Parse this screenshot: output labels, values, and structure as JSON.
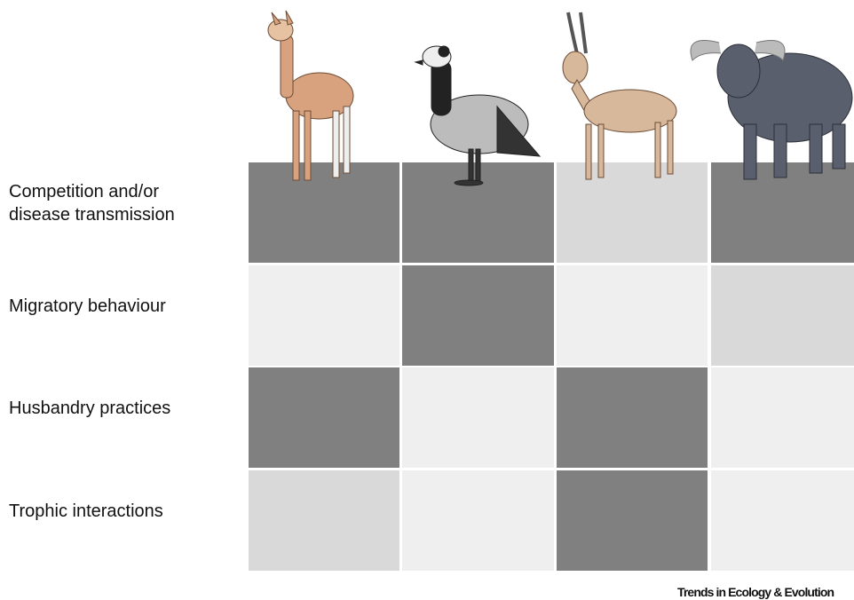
{
  "rows": [
    {
      "label": [
        "Competition and/or",
        "disease transmission"
      ],
      "cells": [
        "#808080",
        "#808080",
        "#d9d9d9",
        "#808080"
      ]
    },
    {
      "label": [
        "Migratory behaviour"
      ],
      "cells": [
        "#efefef",
        "#808080",
        "#efefef",
        "#d9d9d9"
      ]
    },
    {
      "label": [
        "Husbandry practices"
      ],
      "cells": [
        "#808080",
        "#efefef",
        "#808080",
        "#efefef"
      ]
    },
    {
      "label": [
        "Trophic interactions"
      ],
      "cells": [
        "#d9d9d9",
        "#efefef",
        "#808080",
        "#efefef"
      ]
    }
  ],
  "footer": "Trends in Ecology & Evolution"
}
